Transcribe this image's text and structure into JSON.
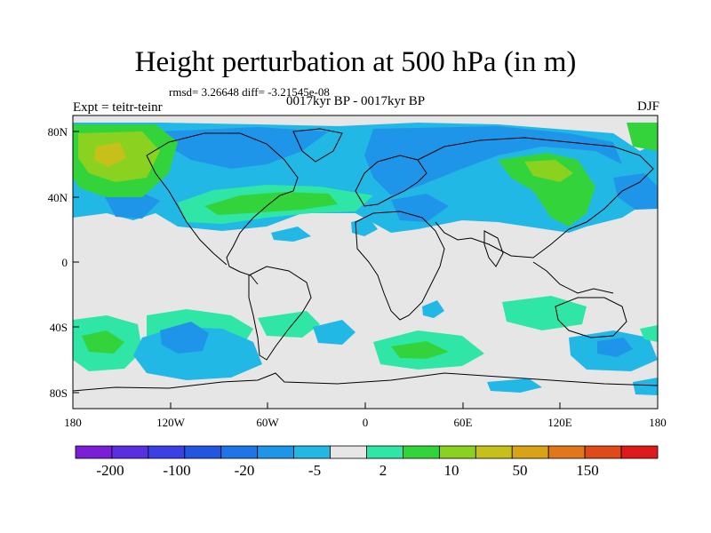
{
  "title": "Height perturbation at 500 hPa (in m)",
  "stats": "rmsd= 3.26648 diff= -3.21545e-08",
  "period": "0017kyr BP - 0017kyr BP",
  "experiment": "Expt = teitr-teinr",
  "season": "DJF",
  "map": {
    "lat_ticks": [
      "80N",
      "40N",
      "0",
      "40S",
      "80S"
    ],
    "lon_ticks": [
      "180",
      "120W",
      "60W",
      "0",
      "60E",
      "120E",
      "180"
    ]
  },
  "colorbar": {
    "colors": [
      "#7a1fd6",
      "#5a2fe0",
      "#3a3fe6",
      "#2255e0",
      "#1f74e8",
      "#1f95ea",
      "#22b8e6",
      "#e6e6e6",
      "#2fe6a6",
      "#33d43b",
      "#8ad21f",
      "#c8c01a",
      "#d9a317",
      "#e0771a",
      "#e04a18",
      "#e01a1a"
    ],
    "labels": [
      "-200",
      "-100",
      "-20",
      "-5",
      "2",
      "10",
      "50",
      "150"
    ]
  },
  "palette": {
    "neutral": "#e6e6e6",
    "blue_light": "#22b8e6",
    "blue_mid": "#1f95ea",
    "blue_deep": "#1f74e8",
    "green_light": "#2fe6a6",
    "green": "#33d43b",
    "yellow_green": "#8ad21f",
    "olive": "#c8c01a"
  }
}
